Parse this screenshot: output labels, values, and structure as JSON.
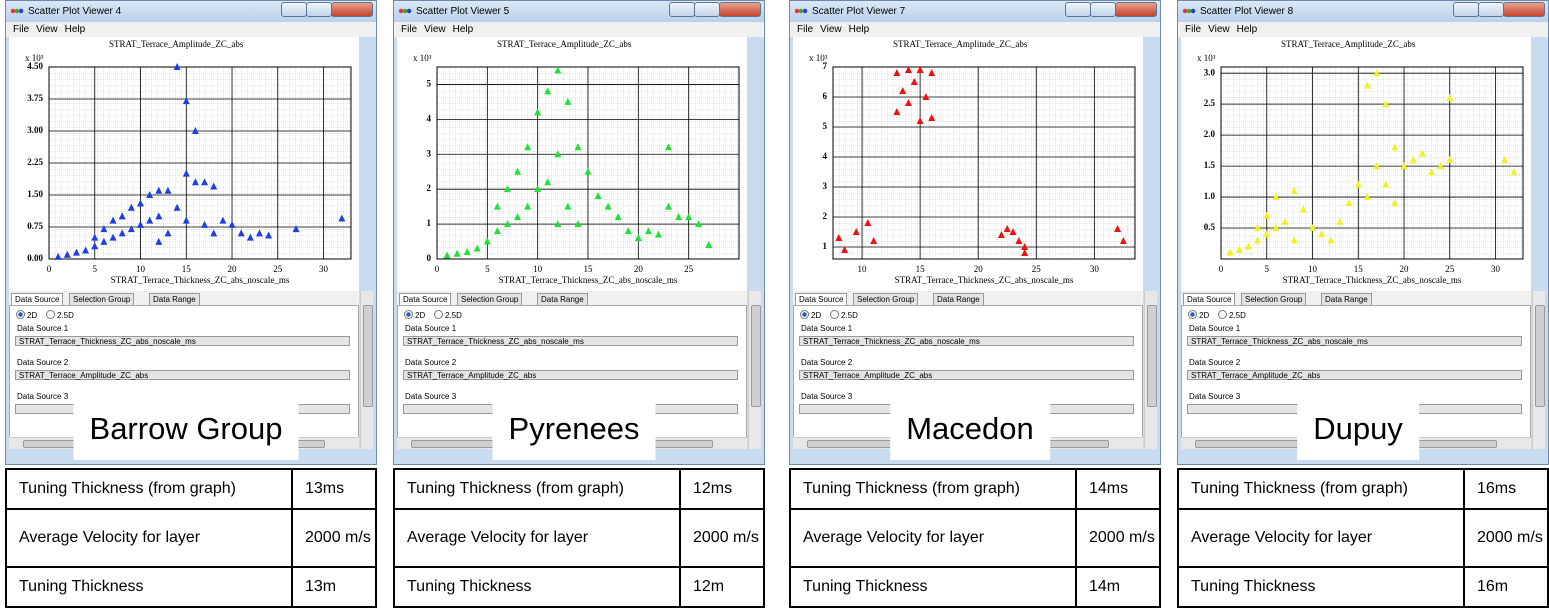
{
  "chart_data": [
    {
      "type": "scatter",
      "title": "STRAT_Terrace_Amplitude_ZC_abs",
      "multiplier": "x 10³",
      "x_label": "STRAT_Terrace_Thickness_ZC_abs_noscale_ms",
      "color": "#1f3fe0",
      "xlim": [
        0,
        33
      ],
      "ylim": [
        0,
        4.5
      ],
      "xticks": [
        0,
        5,
        10,
        15,
        20,
        25,
        30
      ],
      "yticks": [
        {
          "value": 0,
          "label": "0.00"
        },
        {
          "value": 0.75,
          "label": "0.75"
        },
        {
          "value": 1.5,
          "label": "1.50"
        },
        {
          "value": 2.25,
          "label": "2.25"
        },
        {
          "value": 3,
          "label": "3.00"
        },
        {
          "value": 3.75,
          "label": "3.75"
        },
        {
          "value": 4.5,
          "label": "4.50"
        }
      ],
      "x": [
        1,
        2,
        3,
        4,
        5,
        5,
        6,
        6,
        7,
        7,
        8,
        8,
        9,
        9,
        10,
        10,
        11,
        11,
        12,
        12,
        12,
        13,
        13,
        14,
        14,
        15,
        15,
        15,
        16,
        16,
        17,
        17,
        18,
        18,
        19,
        20,
        21,
        22,
        23,
        24,
        27,
        32
      ],
      "y": [
        0.05,
        0.1,
        0.15,
        0.2,
        0.3,
        0.5,
        0.4,
        0.7,
        0.5,
        0.9,
        0.6,
        1.0,
        0.7,
        1.2,
        0.8,
        1.3,
        0.9,
        1.5,
        1.0,
        1.6,
        0.4,
        1.6,
        0.6,
        4.5,
        1.2,
        3.7,
        2.0,
        0.9,
        3.0,
        1.8,
        1.8,
        0.8,
        1.7,
        0.6,
        0.9,
        0.8,
        0.6,
        0.5,
        0.6,
        0.55,
        0.7,
        0.95
      ]
    },
    {
      "type": "scatter",
      "title": "STRAT_Terrace_Amplitude_ZC_abs",
      "multiplier": "x 10³",
      "x_label": "STRAT_Terrace_Thickness_ZC_abs_noscale_ms",
      "color": "#22e03a",
      "xlim": [
        0,
        30
      ],
      "ylim": [
        0,
        5.5
      ],
      "xticks": [
        0,
        5,
        10,
        15,
        20,
        25
      ],
      "yticks": [
        0,
        1,
        2,
        3,
        4,
        5
      ],
      "x": [
        1,
        2,
        3,
        4,
        5,
        6,
        6,
        7,
        7,
        8,
        8,
        9,
        9,
        10,
        10,
        11,
        11,
        12,
        12,
        12,
        13,
        13,
        14,
        14,
        15,
        16,
        17,
        18,
        19,
        20,
        21,
        22,
        23,
        23,
        24,
        25,
        26,
        27
      ],
      "y": [
        0.1,
        0.15,
        0.2,
        0.3,
        0.5,
        0.8,
        1.5,
        1.0,
        2.0,
        1.2,
        2.5,
        1.5,
        3.2,
        2.0,
        4.2,
        2.2,
        4.8,
        5.4,
        3.0,
        1.0,
        4.5,
        1.5,
        3.2,
        1.0,
        2.5,
        1.8,
        1.5,
        1.2,
        0.8,
        0.6,
        0.8,
        0.7,
        3.2,
        1.5,
        1.2,
        1.2,
        1.0,
        0.4
      ]
    },
    {
      "type": "scatter",
      "title": "STRAT_Terrace_Amplitude_ZC_abs",
      "multiplier": "x 10³",
      "x_label": "STRAT_Terrace_Thickness_ZC_abs_noscale_ms",
      "color": "#ee1111",
      "xlim": [
        7.5,
        33.5
      ],
      "ylim": [
        0.6,
        7
      ],
      "xticks": [
        10,
        15,
        20,
        25,
        30
      ],
      "yticks": [
        1,
        2,
        3,
        4,
        5,
        6,
        7
      ],
      "x": [
        8,
        8.5,
        9.5,
        10.5,
        11,
        13,
        13,
        13.5,
        14,
        14,
        14.5,
        15,
        15,
        15.5,
        16,
        16,
        22,
        22.5,
        23,
        23.5,
        24,
        24,
        32,
        32.5
      ],
      "y": [
        1.3,
        0.9,
        1.5,
        1.8,
        1.2,
        6.8,
        5.5,
        6.2,
        6.9,
        5.8,
        6.5,
        6.9,
        5.2,
        6.0,
        6.8,
        5.3,
        1.4,
        1.6,
        1.5,
        1.2,
        1.0,
        0.8,
        1.6,
        1.2
      ]
    },
    {
      "type": "scatter",
      "title": "STRAT_Terrace_Amplitude_ZC_abs",
      "multiplier": "x 10³",
      "x_label": "STRAT_Terrace_Thickness_ZC_abs_noscale_ms",
      "color": "#f2f020",
      "xlim": [
        0,
        33
      ],
      "ylim": [
        0,
        3.1
      ],
      "xticks": [
        0,
        5,
        10,
        15,
        20,
        25,
        30
      ],
      "yticks": [
        {
          "value": 0.5,
          "label": "0.5"
        },
        {
          "value": 1,
          "label": "1.0"
        },
        {
          "value": 1.5,
          "label": "1.5"
        },
        {
          "value": 2,
          "label": "2.0"
        },
        {
          "value": 2.5,
          "label": "2.5"
        },
        {
          "value": 3,
          "label": "3.0"
        }
      ],
      "x": [
        1,
        2,
        3,
        4,
        4,
        5,
        5,
        6,
        6,
        7,
        8,
        8,
        9,
        10,
        11,
        12,
        13,
        14,
        15,
        16,
        16,
        17,
        17,
        18,
        18,
        19,
        19,
        20,
        21,
        22,
        23,
        24,
        25,
        25,
        31,
        32
      ],
      "y": [
        0.1,
        0.15,
        0.2,
        0.3,
        0.5,
        0.4,
        0.7,
        0.5,
        1.0,
        0.6,
        0.3,
        1.1,
        0.8,
        0.5,
        0.4,
        0.3,
        0.6,
        0.9,
        1.2,
        2.8,
        1.0,
        3.0,
        1.5,
        2.5,
        1.2,
        1.8,
        0.9,
        1.5,
        1.6,
        1.7,
        1.4,
        1.5,
        2.6,
        1.6,
        1.6,
        1.4
      ]
    }
  ],
  "windows": [
    {
      "title": "Scatter Plot Viewer 4",
      "menu": [
        "File",
        "View",
        "Help"
      ],
      "tabs": [
        "Data Source",
        "Selection Group",
        "Data Range"
      ],
      "radios": [
        "2D",
        "2.5D"
      ],
      "sources": [
        {
          "label": "Data Source 1",
          "value": "STRAT_Terrace_Thickness_ZC_abs_noscale_ms"
        },
        {
          "label": "Data Source 2",
          "value": "STRAT_Terrace_Amplitude_ZC_abs"
        },
        {
          "label": "Data Source 3"
        }
      ],
      "name": "Barrow Group",
      "table": [
        [
          "Tuning Thickness (from graph)",
          "13ms"
        ],
        [
          "Average Velocity for layer",
          "2000 m/s"
        ],
        [
          "Tuning Thickness",
          "13m"
        ]
      ]
    },
    {
      "title": "Scatter Plot Viewer 5",
      "menu": [
        "File",
        "View",
        "Help"
      ],
      "tabs": [
        "Data Source",
        "Selection Group",
        "Data Range"
      ],
      "radios": [
        "2D",
        "2.5D"
      ],
      "sources": [
        {
          "label": "Data Source 1",
          "value": "STRAT_Terrace_Thickness_ZC_abs_noscale_ms"
        },
        {
          "label": "Data Source 2",
          "value": "STRAT_Terrace_Amplitude_ZC_abs"
        },
        {
          "label": "Data Source 3"
        }
      ],
      "name": "Pyrenees",
      "table": [
        [
          "Tuning Thickness (from graph)",
          "12ms"
        ],
        [
          "Average Velocity for layer",
          "2000 m/s"
        ],
        [
          "Tuning Thickness",
          "12m"
        ]
      ]
    },
    {
      "title": "Scatter Plot Viewer 7",
      "menu": [
        "File",
        "View",
        "Help"
      ],
      "tabs": [
        "Data Source",
        "Selection Group",
        "Data Range"
      ],
      "radios": [
        "2D",
        "2.5D"
      ],
      "sources": [
        {
          "label": "Data Source 1",
          "value": "STRAT_Terrace_Thickness_ZC_abs_noscale_ms"
        },
        {
          "label": "Data Source 2",
          "value": "STRAT_Terrace_Amplitude_ZC_abs"
        },
        {
          "label": "Data Source 3"
        }
      ],
      "name": "Macedon",
      "table": [
        [
          "Tuning Thickness (from graph)",
          "14ms"
        ],
        [
          "Average Velocity for layer",
          "2000 m/s"
        ],
        [
          "Tuning Thickness",
          "14m"
        ]
      ]
    },
    {
      "title": "Scatter Plot Viewer 8",
      "menu": [
        "File",
        "View",
        "Help"
      ],
      "tabs": [
        "Data Source",
        "Selection Group",
        "Data Range"
      ],
      "radios": [
        "2D",
        "2.5D"
      ],
      "sources": [
        {
          "label": "Data Source 1",
          "value": "STRAT_Terrace_Thickness_ZC_abs_noscale_ms"
        },
        {
          "label": "Data Source 2",
          "value": "STRAT_Terrace_Amplitude_ZC_abs"
        },
        {
          "label": "Data Source 3"
        }
      ],
      "name": "Dupuy",
      "table": [
        [
          "Tuning Thickness (from graph)",
          "16ms"
        ],
        [
          "Average Velocity for layer",
          "2000 m/s"
        ],
        [
          "Tuning Thickness",
          "16m"
        ]
      ]
    }
  ]
}
